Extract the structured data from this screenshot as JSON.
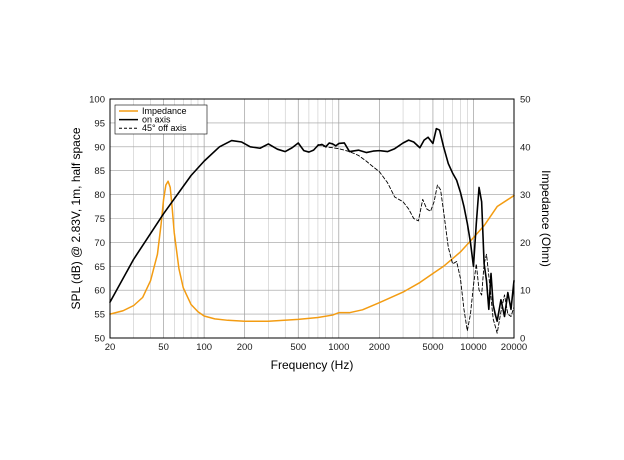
{
  "chart_data": {
    "type": "line",
    "xscale": "log",
    "xlim": [
      20,
      20000
    ],
    "xlabel": "Frequency (Hz)",
    "ylabel_left": "SPL (dB) @ 2.83V, 1m, half space",
    "ylim_left": [
      50,
      100
    ],
    "ylabel_right": "Impedance (Ohm)",
    "ylim_right": [
      0,
      50
    ],
    "x_ticks": [
      20,
      50,
      100,
      200,
      500,
      1000,
      2000,
      5000,
      10000,
      20000
    ],
    "y_ticks_left": [
      50,
      55,
      60,
      65,
      70,
      75,
      80,
      85,
      90,
      95,
      100
    ],
    "y_ticks_right": [
      0,
      10,
      20,
      30,
      40,
      50
    ],
    "grid": true,
    "legend_position": "top-left",
    "colors": {
      "impedance": "#f39c12",
      "on_axis": "#000000",
      "off_axis": "#000000",
      "grid": "#bdbdbd"
    },
    "series": [
      {
        "name": "Impedance",
        "axis": "right",
        "style": "solid",
        "color": "#f39c12",
        "x": [
          20,
          25,
          30,
          35,
          40,
          45,
          48,
          50,
          52,
          54,
          56,
          58,
          60,
          65,
          70,
          80,
          90,
          100,
          120,
          150,
          200,
          300,
          500,
          700,
          900,
          1000,
          1200,
          1500,
          2000,
          3000,
          4000,
          5000,
          6000,
          8000,
          10000,
          12000,
          15000,
          20000
        ],
        "values": [
          5.0,
          5.7,
          6.8,
          8.5,
          12.0,
          17.5,
          24.0,
          29.0,
          32.0,
          32.8,
          31.5,
          27.0,
          22.0,
          14.5,
          10.5,
          7.0,
          5.5,
          4.6,
          4.0,
          3.7,
          3.5,
          3.5,
          3.9,
          4.3,
          4.8,
          5.3,
          5.3,
          5.9,
          7.4,
          9.6,
          11.6,
          13.5,
          15.0,
          18.0,
          21.0,
          23.5,
          27.5,
          29.8
        ]
      },
      {
        "name": "on axis",
        "axis": "left",
        "style": "solid",
        "color": "#000000",
        "x": [
          20,
          30,
          50,
          80,
          100,
          130,
          160,
          190,
          220,
          260,
          300,
          350,
          400,
          450,
          500,
          550,
          600,
          650,
          700,
          750,
          800,
          850,
          900,
          950,
          1000,
          1100,
          1200,
          1400,
          1600,
          1800,
          2000,
          2300,
          2600,
          3000,
          3300,
          3600,
          4000,
          4300,
          4600,
          5000,
          5300,
          5600,
          6000,
          6500,
          7000,
          7500,
          8000,
          8500,
          9000,
          9500,
          10000,
          10500,
          11000,
          11500,
          12000,
          12500,
          13000,
          13500,
          14000,
          14500,
          15000,
          16000,
          17000,
          18000,
          19000,
          20000
        ],
        "values": [
          57.5,
          66.5,
          76.0,
          84.0,
          87.0,
          90.0,
          91.3,
          91.0,
          90.0,
          89.7,
          90.6,
          89.5,
          89.0,
          89.8,
          90.8,
          89.2,
          88.9,
          89.3,
          90.3,
          90.5,
          90.0,
          90.8,
          90.6,
          90.2,
          90.7,
          90.8,
          89.0,
          89.3,
          88.8,
          89.1,
          89.2,
          89.0,
          89.6,
          90.8,
          91.4,
          91.0,
          89.8,
          91.4,
          92.0,
          90.7,
          93.8,
          93.5,
          90.0,
          86.5,
          84.5,
          83.0,
          80.5,
          77.5,
          74.0,
          70.0,
          65.0,
          74.0,
          81.5,
          78.5,
          65.5,
          62.0,
          56.0,
          63.5,
          57.0,
          55.0,
          53.5,
          58.0,
          54.5,
          59.5,
          56.0,
          62.0
        ]
      },
      {
        "name": "45° off axis",
        "axis": "left",
        "style": "dashed",
        "color": "#000000",
        "x": [
          700,
          800,
          900,
          1000,
          1100,
          1200,
          1400,
          1600,
          1800,
          2000,
          2300,
          2600,
          3000,
          3300,
          3600,
          3900,
          4200,
          4500,
          4800,
          5100,
          5400,
          5700,
          6000,
          6500,
          7000,
          7500,
          8000,
          8500,
          9000,
          9500,
          10000,
          10500,
          11000,
          11500,
          12000,
          12500,
          13000,
          13500,
          14000,
          14500,
          15000,
          16000,
          17000,
          18000,
          19000,
          20000
        ],
        "values": [
          90.5,
          90.0,
          89.8,
          89.6,
          89.3,
          89.0,
          88.2,
          87.0,
          85.8,
          84.8,
          82.5,
          79.5,
          78.5,
          77.0,
          75.0,
          74.5,
          79.0,
          77.0,
          76.5,
          78.5,
          82.0,
          81.0,
          76.5,
          69.0,
          65.5,
          66.0,
          62.5,
          56.0,
          51.5,
          55.0,
          61.0,
          65.5,
          60.0,
          59.0,
          65.5,
          67.5,
          63.0,
          58.5,
          54.0,
          52.5,
          51.0,
          55.5,
          59.0,
          55.0,
          54.5,
          56.5
        ]
      }
    ]
  }
}
